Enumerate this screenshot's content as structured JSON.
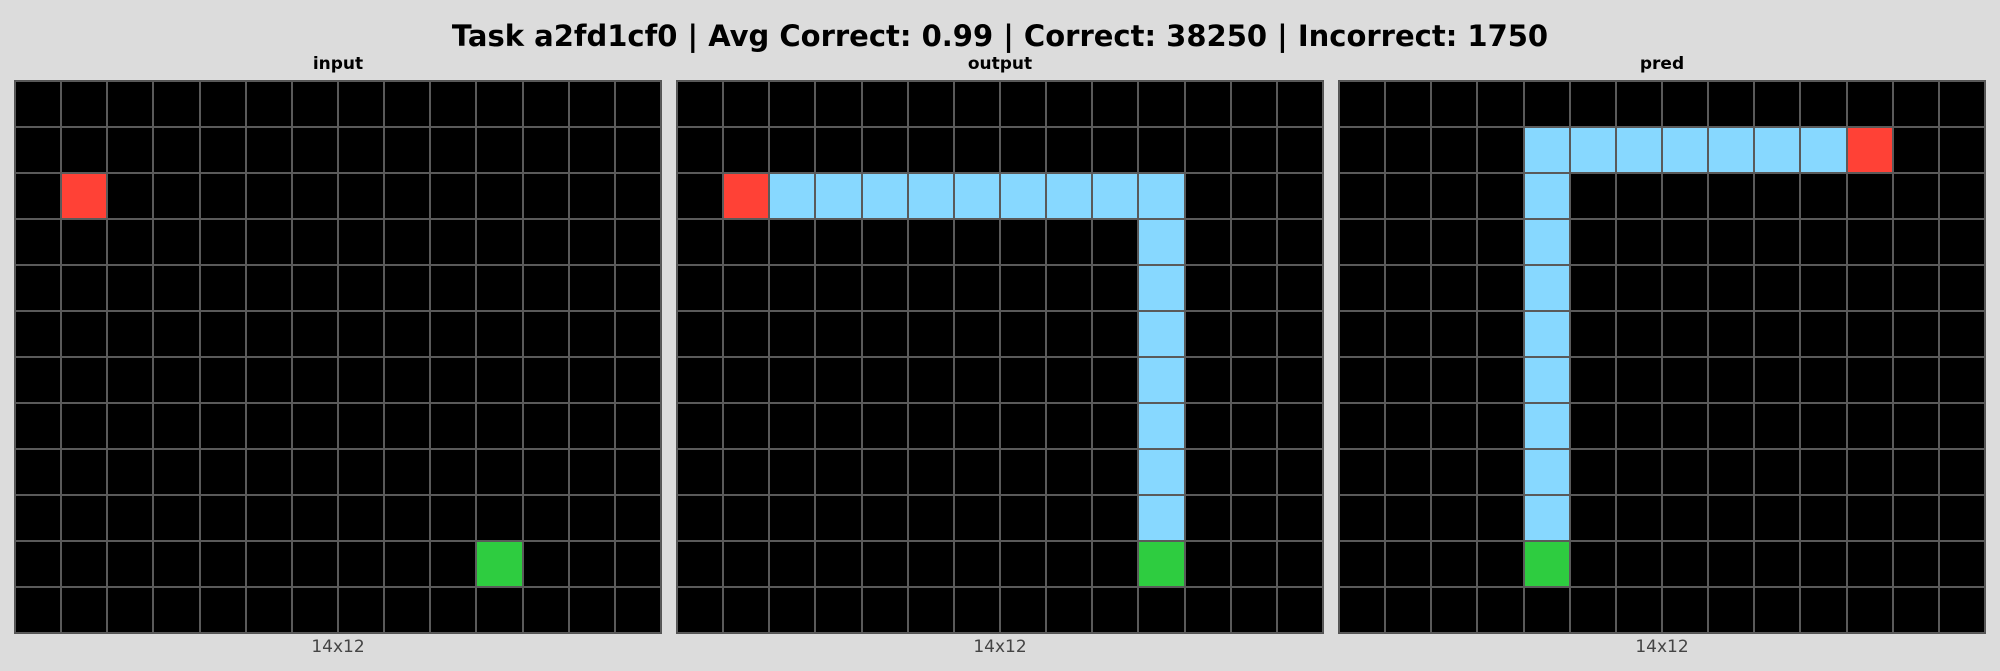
{
  "title": "Task a2fd1cf0 | Avg Correct: 0.99 | Correct: 38250 | Incorrect: 1750",
  "palette": {
    "0": "#000000",
    "2": "#ff4136",
    "3": "#2ecc40",
    "8": "#87d8ff"
  },
  "panels": [
    {
      "name": "input",
      "title": "input",
      "caption": "14x12",
      "cols": 14,
      "rows": 12,
      "grid": [
        [
          0,
          0,
          0,
          0,
          0,
          0,
          0,
          0,
          0,
          0,
          0,
          0,
          0,
          0
        ],
        [
          0,
          0,
          0,
          0,
          0,
          0,
          0,
          0,
          0,
          0,
          0,
          0,
          0,
          0
        ],
        [
          0,
          2,
          0,
          0,
          0,
          0,
          0,
          0,
          0,
          0,
          0,
          0,
          0,
          0
        ],
        [
          0,
          0,
          0,
          0,
          0,
          0,
          0,
          0,
          0,
          0,
          0,
          0,
          0,
          0
        ],
        [
          0,
          0,
          0,
          0,
          0,
          0,
          0,
          0,
          0,
          0,
          0,
          0,
          0,
          0
        ],
        [
          0,
          0,
          0,
          0,
          0,
          0,
          0,
          0,
          0,
          0,
          0,
          0,
          0,
          0
        ],
        [
          0,
          0,
          0,
          0,
          0,
          0,
          0,
          0,
          0,
          0,
          0,
          0,
          0,
          0
        ],
        [
          0,
          0,
          0,
          0,
          0,
          0,
          0,
          0,
          0,
          0,
          0,
          0,
          0,
          0
        ],
        [
          0,
          0,
          0,
          0,
          0,
          0,
          0,
          0,
          0,
          0,
          0,
          0,
          0,
          0
        ],
        [
          0,
          0,
          0,
          0,
          0,
          0,
          0,
          0,
          0,
          0,
          0,
          0,
          0,
          0
        ],
        [
          0,
          0,
          0,
          0,
          0,
          0,
          0,
          0,
          0,
          0,
          3,
          0,
          0,
          0
        ],
        [
          0,
          0,
          0,
          0,
          0,
          0,
          0,
          0,
          0,
          0,
          0,
          0,
          0,
          0
        ]
      ]
    },
    {
      "name": "output",
      "title": "output",
      "caption": "14x12",
      "cols": 14,
      "rows": 12,
      "grid": [
        [
          0,
          0,
          0,
          0,
          0,
          0,
          0,
          0,
          0,
          0,
          0,
          0,
          0,
          0
        ],
        [
          0,
          0,
          0,
          0,
          0,
          0,
          0,
          0,
          0,
          0,
          0,
          0,
          0,
          0
        ],
        [
          0,
          2,
          8,
          8,
          8,
          8,
          8,
          8,
          8,
          8,
          8,
          0,
          0,
          0
        ],
        [
          0,
          0,
          0,
          0,
          0,
          0,
          0,
          0,
          0,
          0,
          8,
          0,
          0,
          0
        ],
        [
          0,
          0,
          0,
          0,
          0,
          0,
          0,
          0,
          0,
          0,
          8,
          0,
          0,
          0
        ],
        [
          0,
          0,
          0,
          0,
          0,
          0,
          0,
          0,
          0,
          0,
          8,
          0,
          0,
          0
        ],
        [
          0,
          0,
          0,
          0,
          0,
          0,
          0,
          0,
          0,
          0,
          8,
          0,
          0,
          0
        ],
        [
          0,
          0,
          0,
          0,
          0,
          0,
          0,
          0,
          0,
          0,
          8,
          0,
          0,
          0
        ],
        [
          0,
          0,
          0,
          0,
          0,
          0,
          0,
          0,
          0,
          0,
          8,
          0,
          0,
          0
        ],
        [
          0,
          0,
          0,
          0,
          0,
          0,
          0,
          0,
          0,
          0,
          8,
          0,
          0,
          0
        ],
        [
          0,
          0,
          0,
          0,
          0,
          0,
          0,
          0,
          0,
          0,
          3,
          0,
          0,
          0
        ],
        [
          0,
          0,
          0,
          0,
          0,
          0,
          0,
          0,
          0,
          0,
          0,
          0,
          0,
          0
        ]
      ]
    },
    {
      "name": "pred",
      "title": "pred",
      "caption": "14x12",
      "cols": 14,
      "rows": 12,
      "grid": [
        [
          0,
          0,
          0,
          0,
          0,
          0,
          0,
          0,
          0,
          0,
          0,
          0,
          0,
          0
        ],
        [
          0,
          0,
          0,
          0,
          8,
          8,
          8,
          8,
          8,
          8,
          8,
          2,
          0,
          0
        ],
        [
          0,
          0,
          0,
          0,
          8,
          0,
          0,
          0,
          0,
          0,
          0,
          0,
          0,
          0
        ],
        [
          0,
          0,
          0,
          0,
          8,
          0,
          0,
          0,
          0,
          0,
          0,
          0,
          0,
          0
        ],
        [
          0,
          0,
          0,
          0,
          8,
          0,
          0,
          0,
          0,
          0,
          0,
          0,
          0,
          0
        ],
        [
          0,
          0,
          0,
          0,
          8,
          0,
          0,
          0,
          0,
          0,
          0,
          0,
          0,
          0
        ],
        [
          0,
          0,
          0,
          0,
          8,
          0,
          0,
          0,
          0,
          0,
          0,
          0,
          0,
          0
        ],
        [
          0,
          0,
          0,
          0,
          8,
          0,
          0,
          0,
          0,
          0,
          0,
          0,
          0,
          0
        ],
        [
          0,
          0,
          0,
          0,
          8,
          0,
          0,
          0,
          0,
          0,
          0,
          0,
          0,
          0
        ],
        [
          0,
          0,
          0,
          0,
          8,
          0,
          0,
          0,
          0,
          0,
          0,
          0,
          0,
          0
        ],
        [
          0,
          0,
          0,
          0,
          3,
          0,
          0,
          0,
          0,
          0,
          0,
          0,
          0,
          0
        ],
        [
          0,
          0,
          0,
          0,
          0,
          0,
          0,
          0,
          0,
          0,
          0,
          0,
          0,
          0
        ]
      ]
    }
  ]
}
